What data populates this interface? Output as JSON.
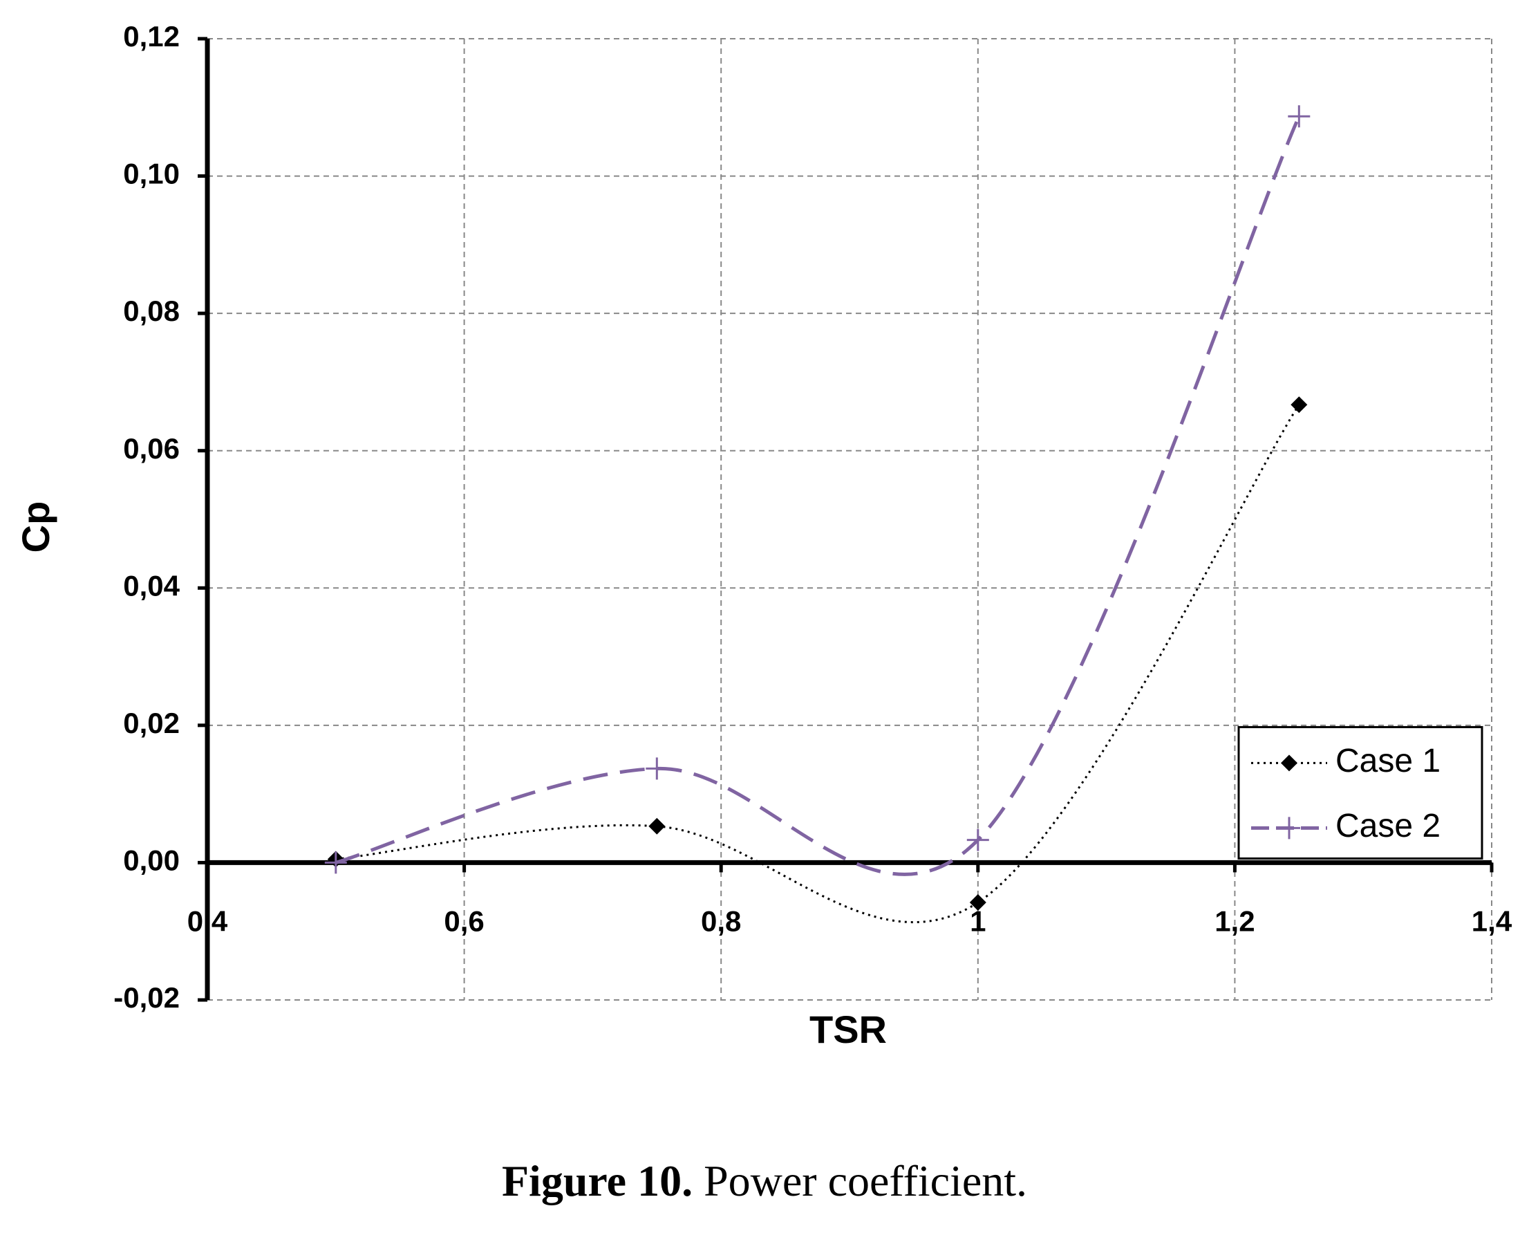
{
  "chart_data": {
    "type": "line",
    "x_label": "TSR",
    "y_label": "Cp",
    "x": [
      0.5,
      0.75,
      1,
      1.25
    ],
    "series": [
      {
        "name": "Case 1",
        "color": "#000000",
        "line_style": "dotted",
        "marker": "diamond",
        "values": [
          0.0005,
          0.0053,
          -0.0058,
          0.0667
        ]
      },
      {
        "name": "Case 2",
        "color": "#8064a2",
        "line_style": "dashed",
        "marker": "plus",
        "values": [
          0,
          0.0137,
          0.0033,
          0.1087
        ]
      }
    ],
    "xlim": [
      0.4,
      1.4
    ],
    "xticks": [
      {
        "value": 0.4,
        "label": "0,4"
      },
      {
        "value": 0.6,
        "label": "0,6"
      },
      {
        "value": 0.8,
        "label": "0,8"
      },
      1,
      {
        "value": 1.2,
        "label": "1,2"
      },
      {
        "value": 1.4,
        "label": "1,4"
      }
    ],
    "ylim": [
      -0.02,
      0.12
    ],
    "yticks": [
      {
        "value": -0.02,
        "label": "-0,02"
      },
      {
        "value": 0,
        "label": "0,00"
      },
      {
        "value": 0.02,
        "label": "0,02"
      },
      {
        "value": 0.04,
        "label": "0,04"
      },
      {
        "value": 0.06,
        "label": "0,06"
      },
      {
        "value": 0.08,
        "label": "0,08"
      },
      {
        "value": 0.1,
        "label": "0,10"
      },
      {
        "value": 0.12,
        "label": "0,12"
      }
    ],
    "grid": true,
    "smooth": true,
    "legend": "lower right"
  },
  "caption": {
    "label": "Figure 10.",
    "text": "Power coefficient."
  }
}
